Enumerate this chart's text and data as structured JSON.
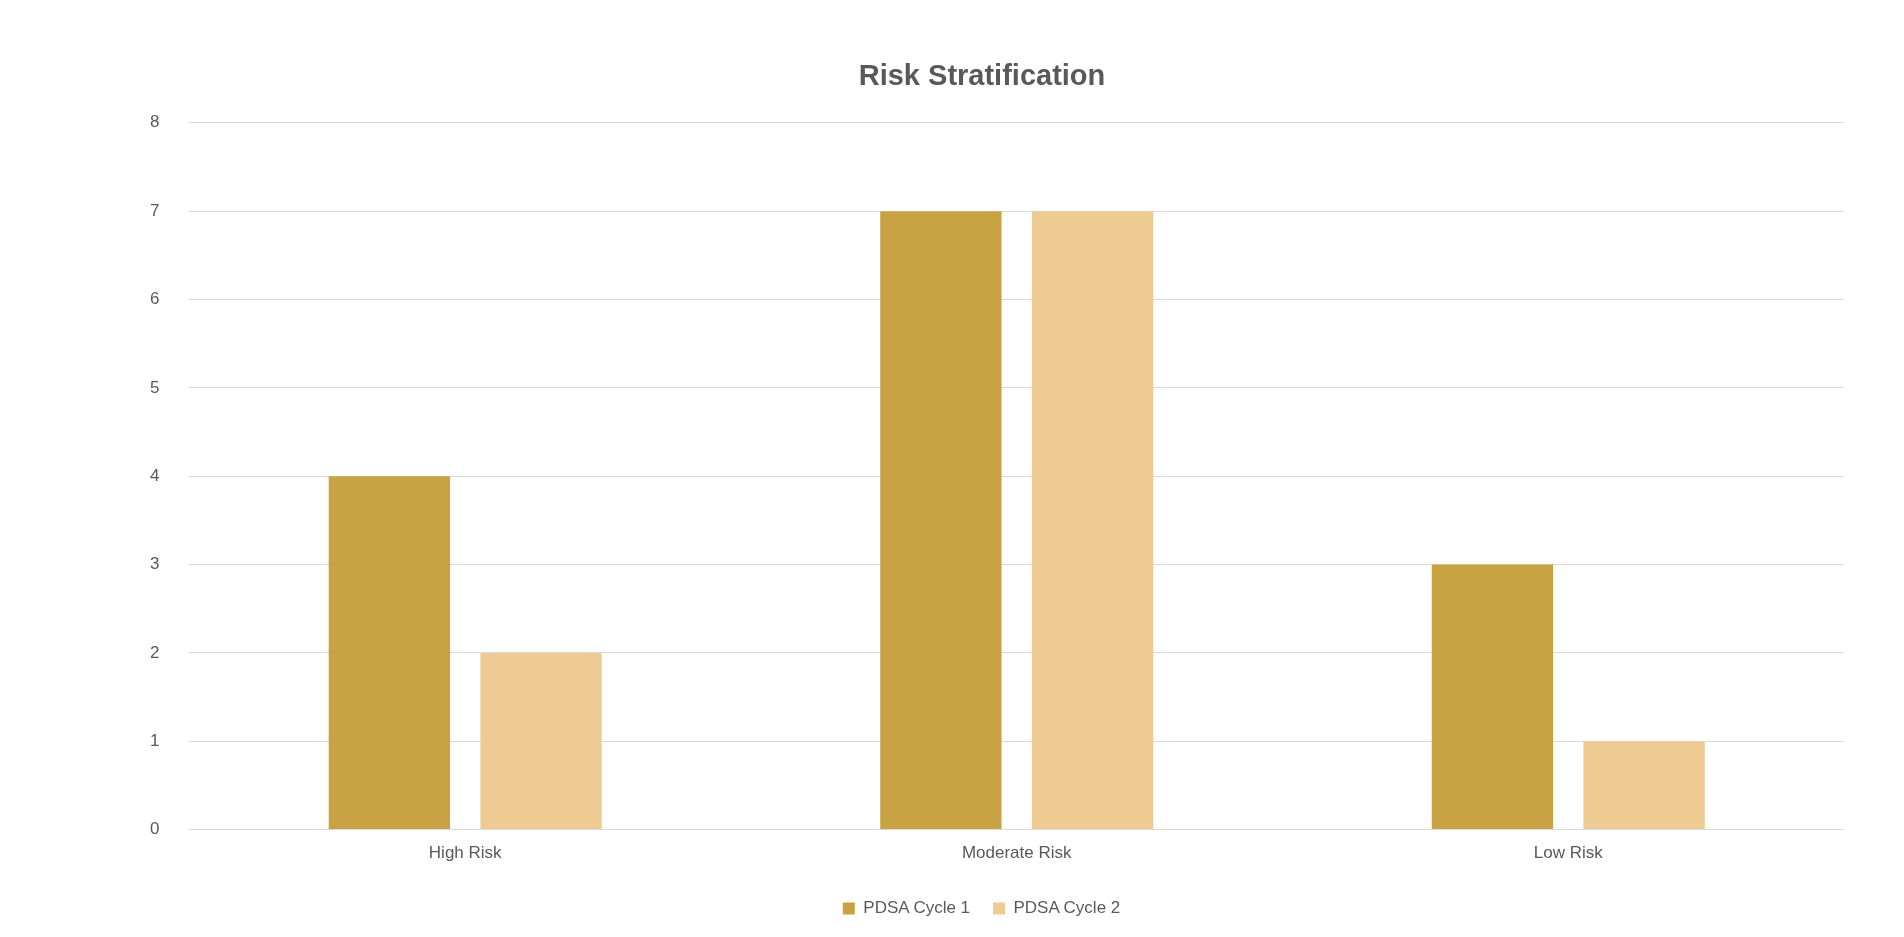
{
  "chart_data": {
    "type": "bar",
    "title": "Risk Stratification",
    "categories": [
      "High Risk",
      "Moderate Risk",
      "Low Risk"
    ],
    "series": [
      {
        "name": "PDSA Cycle 1",
        "color": "#c9a243",
        "values": [
          4,
          7,
          3
        ]
      },
      {
        "name": "PDSA Cycle 2",
        "color": "#eecb92",
        "values": [
          2,
          7,
          1
        ]
      }
    ],
    "ylim": [
      0,
      8
    ],
    "yticks": [
      0,
      1,
      2,
      3,
      4,
      5,
      6,
      7,
      8
    ],
    "grid": "y",
    "legend": "bottom"
  }
}
